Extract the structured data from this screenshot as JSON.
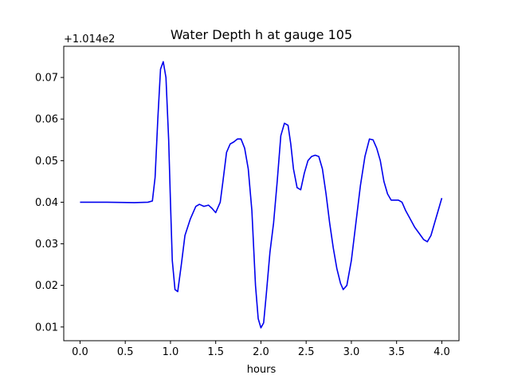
{
  "chart_data": {
    "type": "line",
    "title": "Water Depth h at gauge 105",
    "xlabel": "hours",
    "ylabel": "",
    "y_offset_text": "+1.014e2",
    "xlim": [
      -0.18,
      4.19
    ],
    "ylim": [
      0.0067,
      0.0775
    ],
    "x_ticks": [
      0.0,
      0.5,
      1.0,
      1.5,
      2.0,
      2.5,
      3.0,
      3.5,
      4.0
    ],
    "x_tick_labels": [
      "0.0",
      "0.5",
      "1.0",
      "1.5",
      "2.0",
      "2.5",
      "3.0",
      "3.5",
      "4.0"
    ],
    "y_ticks": [
      0.01,
      0.02,
      0.03,
      0.04,
      0.05,
      0.06,
      0.07
    ],
    "y_tick_labels": [
      "0.01",
      "0.02",
      "0.03",
      "0.04",
      "0.05",
      "0.06",
      "0.07"
    ],
    "grid": false,
    "series": [
      {
        "color": "#0000ee",
        "x": [
          0.0,
          0.3,
          0.6,
          0.75,
          0.8,
          0.83,
          0.86,
          0.89,
          0.92,
          0.95,
          0.98,
          1.0,
          1.02,
          1.05,
          1.08,
          1.12,
          1.16,
          1.22,
          1.28,
          1.32,
          1.37,
          1.42,
          1.46,
          1.5,
          1.55,
          1.58,
          1.62,
          1.66,
          1.7,
          1.74,
          1.78,
          1.82,
          1.86,
          1.9,
          1.94,
          1.97,
          2.0,
          2.03,
          2.06,
          2.1,
          2.14,
          2.18,
          2.22,
          2.26,
          2.3,
          2.33,
          2.36,
          2.4,
          2.44,
          2.48,
          2.52,
          2.56,
          2.6,
          2.64,
          2.68,
          2.72,
          2.76,
          2.8,
          2.84,
          2.88,
          2.91,
          2.95,
          3.0,
          3.05,
          3.1,
          3.15,
          3.2,
          3.24,
          3.28,
          3.32,
          3.36,
          3.4,
          3.44,
          3.48,
          3.52,
          3.56,
          3.6,
          3.65,
          3.7,
          3.75,
          3.8,
          3.84,
          3.88,
          3.92,
          3.96,
          4.0
        ],
        "y": [
          0.04,
          0.04,
          0.0399,
          0.04,
          0.0403,
          0.046,
          0.06,
          0.072,
          0.0738,
          0.07,
          0.055,
          0.04,
          0.026,
          0.019,
          0.0185,
          0.025,
          0.032,
          0.036,
          0.039,
          0.0395,
          0.039,
          0.0393,
          0.0385,
          0.0375,
          0.04,
          0.045,
          0.052,
          0.054,
          0.0545,
          0.0552,
          0.0552,
          0.053,
          0.048,
          0.038,
          0.02,
          0.012,
          0.0098,
          0.011,
          0.018,
          0.028,
          0.035,
          0.045,
          0.056,
          0.059,
          0.0585,
          0.054,
          0.048,
          0.0435,
          0.043,
          0.047,
          0.05,
          0.051,
          0.0513,
          0.051,
          0.048,
          0.042,
          0.035,
          0.029,
          0.024,
          0.0205,
          0.019,
          0.02,
          0.026,
          0.035,
          0.044,
          0.051,
          0.0552,
          0.055,
          0.053,
          0.05,
          0.045,
          0.042,
          0.0405,
          0.0405,
          0.0405,
          0.04,
          0.038,
          0.036,
          0.034,
          0.0325,
          0.031,
          0.0305,
          0.032,
          0.035,
          0.038,
          0.041
        ]
      }
    ]
  }
}
